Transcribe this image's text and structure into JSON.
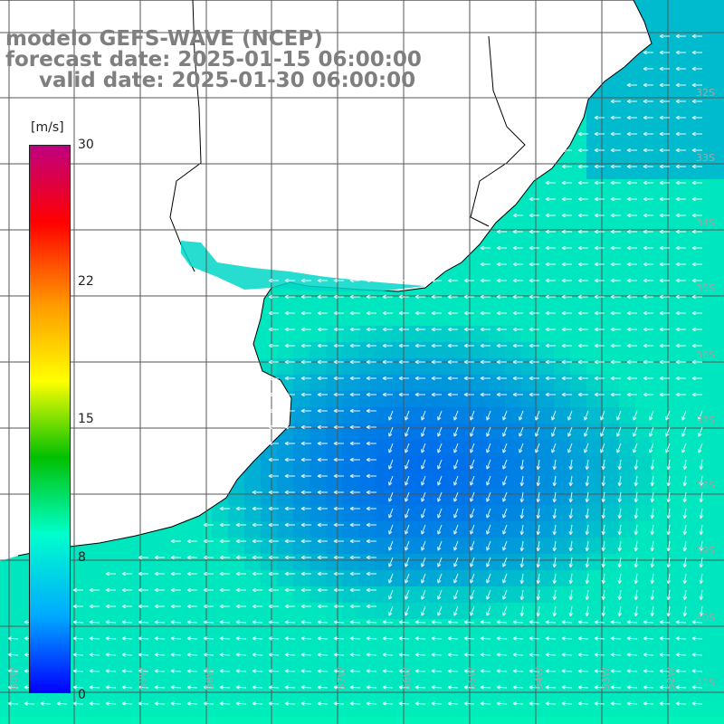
{
  "title_lines": [
    "modelo GEFS-WAVE (NCEP)",
    "forecast date: 2025-01-15 06:00:00",
    "valid date: 2025-01-30 06:00:00"
  ],
  "colorbar": {
    "unit": "[m/s]",
    "ticks": [
      "30",
      "22",
      "15",
      "8",
      "0"
    ],
    "colors": [
      "#c0007f",
      "#ff0000",
      "#ff9900",
      "#ffff00",
      "#00c000",
      "#00ffcc",
      "#00aaff",
      "#0000ff"
    ]
  },
  "lat_labels": [
    "32S",
    "33S",
    "34S",
    "35S",
    "36S",
    "37S",
    "38S",
    "39S",
    "40S",
    "41S"
  ],
  "lon_labels": [
    "60W",
    "59W",
    "58W",
    "57W",
    "56W",
    "55W",
    "54W",
    "53W",
    "52W",
    "51W"
  ],
  "colors": {
    "land": "#ffffff",
    "coast": "#000000",
    "grid": "#555555",
    "arrow": "#ffffff",
    "title": "#7f7f7f"
  }
}
